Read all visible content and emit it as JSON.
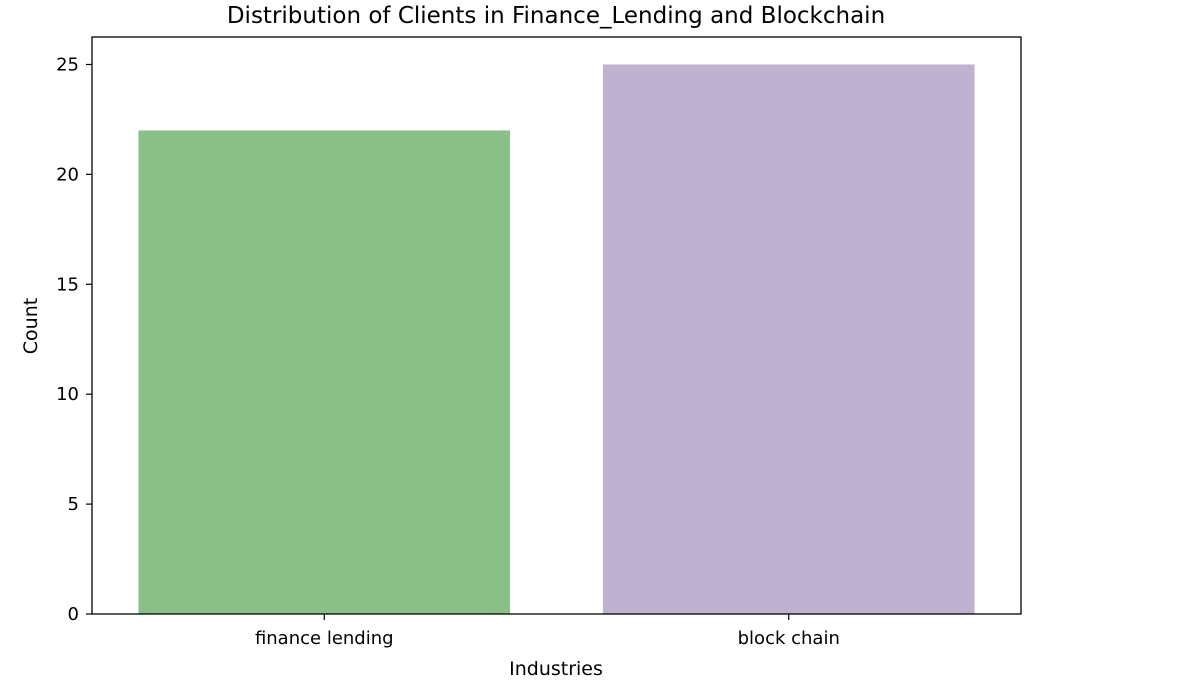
{
  "chart_data": {
    "type": "bar",
    "title": "Distribution of Clients in Finance_Lending and Blockchain",
    "xlabel": "Industries",
    "ylabel": "Count",
    "categories": [
      "finance lending",
      "block chain"
    ],
    "values": [
      22,
      25
    ],
    "colors": [
      "#8abf87",
      "#bfb1d0"
    ],
    "yticks": [
      0,
      5,
      10,
      15,
      20,
      25
    ],
    "ylim": [
      0,
      26.25
    ],
    "grid": false
  }
}
